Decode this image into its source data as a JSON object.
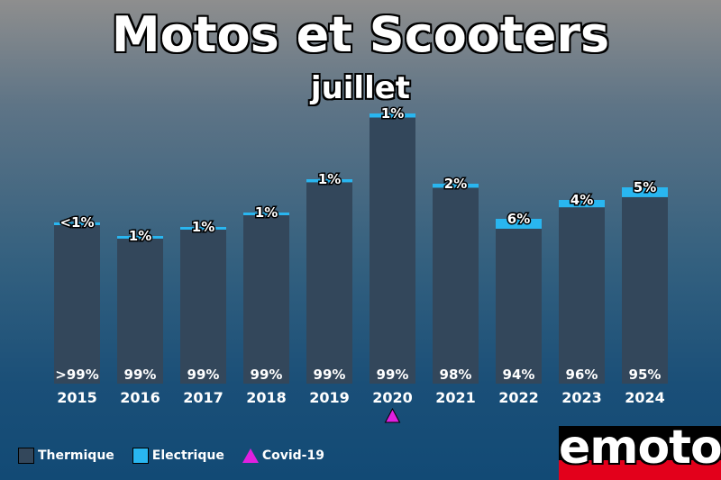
{
  "title": "Motos et Scooters",
  "subtitle": "juillet",
  "chart_data": {
    "type": "bar",
    "stacked": true,
    "categories": [
      "2015",
      "2016",
      "2017",
      "2018",
      "2019",
      "2020",
      "2021",
      "2022",
      "2023",
      "2024"
    ],
    "totals": [
      179,
      164,
      174,
      190,
      227,
      300,
      222,
      183,
      204,
      218
    ],
    "series": [
      {
        "name": "Thermique",
        "color": "#33475b",
        "labels": [
          ">99%",
          "99%",
          "99%",
          "99%",
          "99%",
          "99%",
          "98%",
          "94%",
          "96%",
          "95%"
        ]
      },
      {
        "name": "Electrique",
        "color": "#29b6f0",
        "share": [
          0.01,
          0.015,
          0.01,
          0.015,
          0.015,
          0.015,
          0.02,
          0.06,
          0.04,
          0.05
        ],
        "labels": [
          "<1%",
          "1%",
          "1%",
          "1%",
          "1%",
          "1%",
          "2%",
          "6%",
          "4%",
          "5%"
        ]
      }
    ],
    "annotations": [
      {
        "category": "2020",
        "marker": "triangle",
        "label": "Covid-19",
        "color": "#e020e0"
      }
    ],
    "grid": false,
    "legend": "bottom-left"
  },
  "legend": [
    {
      "label": "Thermique",
      "color": "#33475b",
      "kind": "box"
    },
    {
      "label": "Electrique",
      "color": "#29b6f0",
      "kind": "box"
    },
    {
      "label": "Covid-19",
      "color": "#e020e0",
      "kind": "triangle"
    }
  ],
  "logo": {
    "text": "emoto"
  }
}
